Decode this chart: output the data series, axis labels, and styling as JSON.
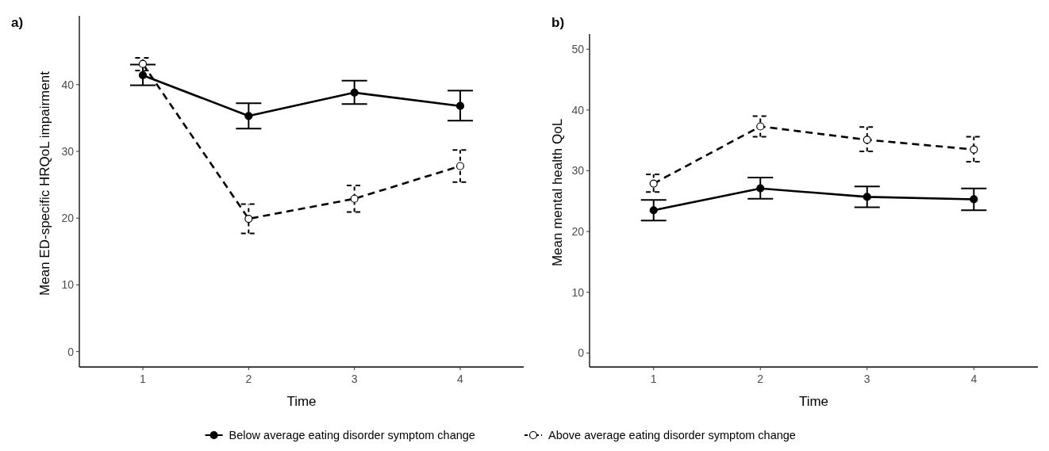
{
  "chart_data": [
    {
      "type": "line",
      "title": "a)",
      "xlabel": "Time",
      "ylabel": "Mean ED-specific HRQoL impairment",
      "x": [
        1,
        2,
        3,
        4
      ],
      "xlim": [
        0.4,
        4.6
      ],
      "xticks": [
        1,
        2,
        3,
        4
      ],
      "ylim": [
        -2.3,
        50.3
      ],
      "yticks": [
        0,
        10,
        20,
        30,
        40
      ],
      "grid": false,
      "marker": "circle",
      "series": [
        {
          "color": "#000000",
          "line_style": "solid",
          "values": [
            41.4,
            35.3,
            38.8,
            36.8
          ],
          "errors": [
            [
              39.9,
              43.0
            ],
            [
              33.4,
              37.2
            ],
            [
              37.1,
              40.6
            ],
            [
              34.6,
              39.1
            ]
          ]
        },
        {
          "color": "#000000",
          "line_style": "dashed",
          "values": [
            43.1,
            19.9,
            22.9,
            27.8
          ],
          "errors": [
            [
              42.1,
              44.0
            ],
            [
              17.7,
              22.1
            ],
            [
              20.9,
              24.9
            ],
            [
              25.4,
              30.2
            ]
          ]
        }
      ]
    },
    {
      "type": "line",
      "title": "b)",
      "xlabel": "Time",
      "ylabel": "Mean mental health QoL",
      "x": [
        1,
        2,
        3,
        4
      ],
      "xlim": [
        0.4,
        4.6
      ],
      "xticks": [
        1,
        2,
        3,
        4
      ],
      "ylim": [
        -2.3,
        52.5
      ],
      "yticks": [
        0,
        10,
        20,
        30,
        40,
        50
      ],
      "grid": false,
      "legend": "bottom",
      "marker": "circle",
      "series": [
        {
          "name": "Below average eating disorder symptom change",
          "color": "#000000",
          "line_style": "solid",
          "values": [
            23.5,
            27.1,
            25.7,
            25.3
          ],
          "errors": [
            [
              21.8,
              25.2
            ],
            [
              25.4,
              28.9
            ],
            [
              24.0,
              27.4
            ],
            [
              23.5,
              27.1
            ]
          ]
        },
        {
          "name": "Above average eating disorder symptom change",
          "color": "#000000",
          "line_style": "dashed",
          "values": [
            27.9,
            37.3,
            35.1,
            33.5
          ],
          "errors": [
            [
              26.5,
              29.4
            ],
            [
              35.6,
              39.0
            ],
            [
              33.2,
              37.2
            ],
            [
              31.5,
              35.6
            ]
          ]
        }
      ]
    }
  ]
}
